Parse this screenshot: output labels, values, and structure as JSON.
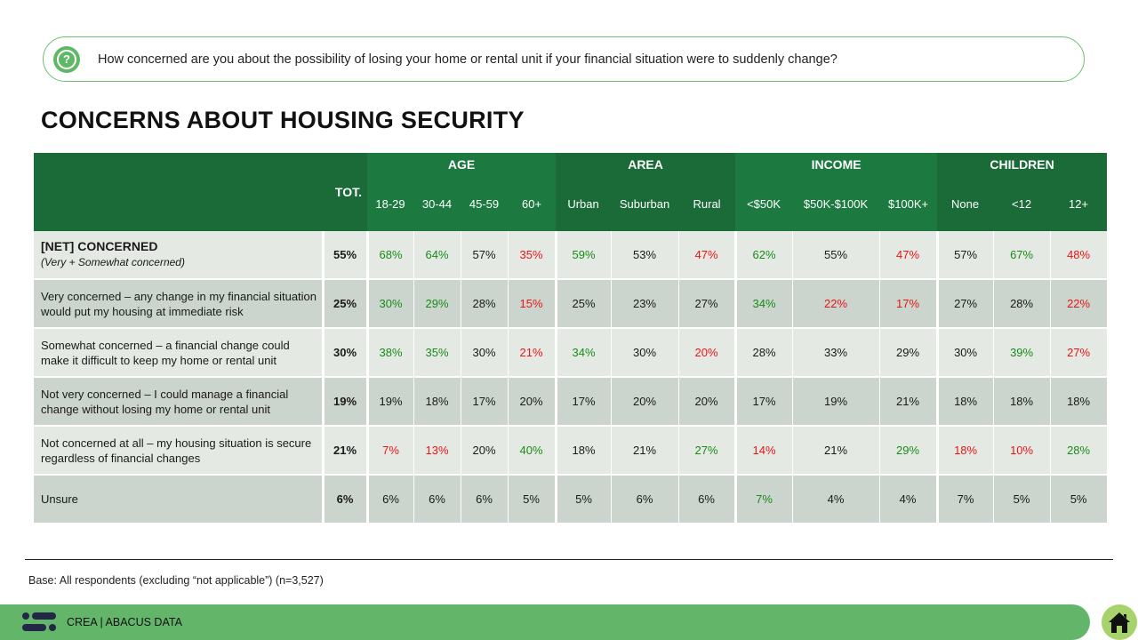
{
  "question": "How concerned are you about the possibility of losing your home or rental unit if your financial situation were to suddenly change?",
  "title": "CONCERNS ABOUT HOUSING SECURITY",
  "base": "Base: All respondents (excluding “not applicable”) (n=3,527)",
  "footer": "CREA  |  ABACUS DATA",
  "colors": {
    "positive": "#1a8a1a",
    "negative": "#e81616",
    "header": "#1a6b37",
    "footer": "#63b56a"
  },
  "chart_data": {
    "type": "table",
    "total_label": "TOT.",
    "groups": [
      {
        "name": "AGE",
        "columns": [
          "18-29",
          "30-44",
          "45-59",
          "60+"
        ]
      },
      {
        "name": "AREA",
        "columns": [
          "Urban",
          "Suburban",
          "Rural"
        ]
      },
      {
        "name": "INCOME",
        "columns": [
          "<$50K",
          "$50K-$100K",
          "$100K+"
        ]
      },
      {
        "name": "CHILDREN",
        "columns": [
          "None",
          "<12",
          "12+"
        ]
      }
    ],
    "rows": [
      {
        "label": "[NET] CONCERNED",
        "note": "(Very + Somewhat concerned)",
        "total": "55%",
        "values": [
          "68%",
          "64%",
          "57%",
          "35%",
          "59%",
          "53%",
          "47%",
          "62%",
          "55%",
          "47%",
          "57%",
          "67%",
          "48%"
        ],
        "sig": [
          "+",
          "+",
          "",
          "-",
          "+",
          "",
          "-",
          "+",
          "",
          "-",
          "",
          "+",
          "-"
        ]
      },
      {
        "label": "Very concerned – any change in my financial situation would put my housing at immediate risk",
        "total": "25%",
        "values": [
          "30%",
          "29%",
          "28%",
          "15%",
          "25%",
          "23%",
          "27%",
          "34%",
          "22%",
          "17%",
          "27%",
          "28%",
          "22%"
        ],
        "sig": [
          "+",
          "+",
          "",
          "-",
          "",
          "",
          "",
          "+",
          "-",
          "-",
          "",
          "",
          "-"
        ]
      },
      {
        "label": "Somewhat concerned – a financial change could make it difficult to keep my home or rental unit",
        "total": "30%",
        "values": [
          "38%",
          "35%",
          "30%",
          "21%",
          "34%",
          "30%",
          "20%",
          "28%",
          "33%",
          "29%",
          "30%",
          "39%",
          "27%"
        ],
        "sig": [
          "+",
          "+",
          "",
          "-",
          "+",
          "",
          "-",
          "",
          "",
          "",
          "",
          "+",
          "-"
        ]
      },
      {
        "label": "Not very concerned – I could manage a financial change without losing my home or rental unit",
        "total": "19%",
        "values": [
          "19%",
          "18%",
          "17%",
          "20%",
          "17%",
          "20%",
          "20%",
          "17%",
          "19%",
          "21%",
          "18%",
          "18%",
          "18%"
        ],
        "sig": [
          "",
          "",
          "",
          "",
          "",
          "",
          "",
          "",
          "",
          "",
          "",
          "",
          ""
        ]
      },
      {
        "label": "Not concerned at all – my housing situation is secure regardless of financial changes",
        "total": "21%",
        "values": [
          "7%",
          "13%",
          "20%",
          "40%",
          "18%",
          "21%",
          "27%",
          "14%",
          "21%",
          "29%",
          "18%",
          "10%",
          "28%"
        ],
        "sig": [
          "-",
          "-",
          "",
          "+",
          "",
          "",
          "+",
          "-",
          "",
          "+",
          "-",
          "-",
          "+"
        ]
      },
      {
        "label": "Unsure",
        "total": "6%",
        "values": [
          "6%",
          "6%",
          "6%",
          "5%",
          "5%",
          "6%",
          "6%",
          "7%",
          "4%",
          "4%",
          "7%",
          "5%",
          "5%"
        ],
        "sig": [
          "",
          "",
          "",
          "",
          "",
          "",
          "",
          "+",
          "",
          "",
          "",
          "",
          ""
        ]
      }
    ]
  }
}
